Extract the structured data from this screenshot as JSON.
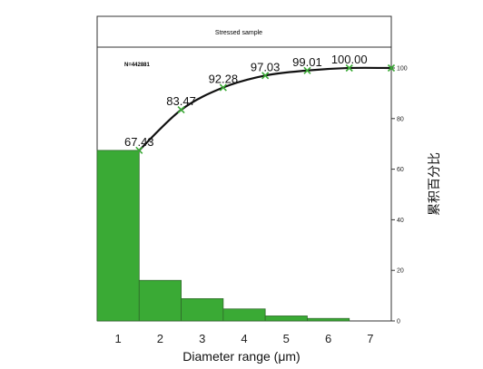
{
  "chart_data": {
    "type": "bar",
    "title": "Stressed sample",
    "annotation": "N=442881",
    "xlabel": "Diameter range (μm)",
    "ylabel_right": "累积百分比",
    "x_ticks": [
      "1",
      "2",
      "3",
      "4",
      "5",
      "6",
      "7"
    ],
    "y_ticks_right": [
      "0",
      "20",
      "40",
      "60",
      "80",
      "100"
    ],
    "ylim": [
      0,
      100
    ],
    "grid": false,
    "colors": {
      "bar": "#3aaa35",
      "bar_edge": "#2f6a2a",
      "line": "#111111",
      "marker": "#3aaa35"
    },
    "bars": [
      {
        "bin": "1",
        "value": 67.43
      },
      {
        "bin": "2",
        "value": 16.04
      },
      {
        "bin": "3",
        "value": 8.81
      },
      {
        "bin": "4",
        "value": 4.75
      },
      {
        "bin": "5",
        "value": 1.98
      },
      {
        "bin": "6",
        "value": 0.99
      },
      {
        "bin": "7",
        "value": 0
      }
    ],
    "cumulative": {
      "x": [
        1.5,
        2.5,
        3.5,
        4.5,
        5.5,
        6.5,
        7.5
      ],
      "values": [
        67.43,
        83.47,
        92.28,
        97.03,
        99.01,
        100.0,
        100.0
      ],
      "labels": [
        "67.43",
        "83.47",
        "92.28",
        "97.03",
        "99.01",
        "100.00",
        ""
      ]
    }
  }
}
